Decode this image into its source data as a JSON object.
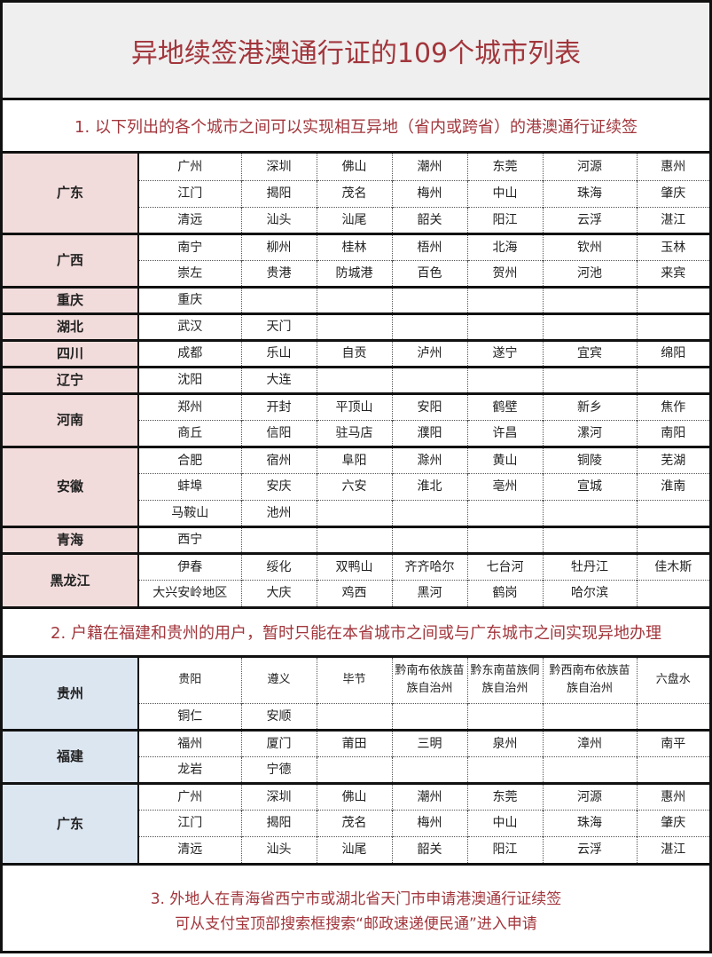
{
  "title": "异地续签港澳通行证的109个城市列表",
  "section1": {
    "heading": "1. 以下列出的各个城市之间可以实现相互异地（省内或跨省）的港澳通行证续签",
    "provinces": [
      {
        "name": "广东",
        "rows": [
          [
            "广州",
            "深圳",
            "佛山",
            "潮州",
            "东莞",
            "河源",
            "惠州"
          ],
          [
            "江门",
            "揭阳",
            "茂名",
            "梅州",
            "中山",
            "珠海",
            "肇庆"
          ],
          [
            "清远",
            "汕头",
            "汕尾",
            "韶关",
            "阳江",
            "云浮",
            "湛江"
          ]
        ]
      },
      {
        "name": "广西",
        "rows": [
          [
            "南宁",
            "柳州",
            "桂林",
            "梧州",
            "北海",
            "钦州",
            "玉林"
          ],
          [
            "崇左",
            "贵港",
            "防城港",
            "百色",
            "贺州",
            "河池",
            "来宾"
          ]
        ]
      },
      {
        "name": "重庆",
        "rows": [
          [
            "重庆",
            "",
            "",
            "",
            "",
            "",
            ""
          ]
        ]
      },
      {
        "name": "湖北",
        "rows": [
          [
            "武汉",
            "天门",
            "",
            "",
            "",
            "",
            ""
          ]
        ]
      },
      {
        "name": "四川",
        "rows": [
          [
            "成都",
            "乐山",
            "自贡",
            "泸州",
            "遂宁",
            "宜宾",
            "绵阳"
          ]
        ]
      },
      {
        "name": "辽宁",
        "rows": [
          [
            "沈阳",
            "大连",
            "",
            "",
            "",
            "",
            ""
          ]
        ]
      },
      {
        "name": "河南",
        "rows": [
          [
            "郑州",
            "开封",
            "平顶山",
            "安阳",
            "鹤壁",
            "新乡",
            "焦作"
          ],
          [
            "商丘",
            "信阳",
            "驻马店",
            "濮阳",
            "许昌",
            "漯河",
            "南阳"
          ]
        ]
      },
      {
        "name": "安徽",
        "rows": [
          [
            "合肥",
            "宿州",
            "阜阳",
            "滁州",
            "黄山",
            "铜陵",
            "芜湖"
          ],
          [
            "蚌埠",
            "安庆",
            "六安",
            "淮北",
            "亳州",
            "宣城",
            "淮南"
          ],
          [
            "马鞍山",
            "池州",
            "",
            "",
            "",
            "",
            ""
          ]
        ]
      },
      {
        "name": "青海",
        "rows": [
          [
            "西宁",
            "",
            "",
            "",
            "",
            "",
            ""
          ]
        ]
      },
      {
        "name": "黑龙江",
        "rows": [
          [
            "伊春",
            "绥化",
            "双鸭山",
            "齐齐哈尔",
            "七台河",
            "牡丹江",
            "佳木斯"
          ],
          [
            "大兴安岭地区",
            "大庆",
            "鸡西",
            "黑河",
            "鹤岗",
            "哈尔滨",
            ""
          ]
        ]
      }
    ]
  },
  "section2": {
    "heading": "2. 户籍在福建和贵州的用户，暂时只能在本省城市之间或与广东城市之间实现异地办理",
    "provinces": [
      {
        "name": "贵州",
        "rows": [
          [
            "贵阳",
            "遵义",
            "毕节",
            "黔南布依族苗族自治州",
            "黔东南苗族侗族自治州",
            "黔西南布依族苗族自治州",
            "六盘水"
          ],
          [
            "铜仁",
            "安顺",
            "",
            "",
            "",
            "",
            ""
          ]
        ]
      },
      {
        "name": "福建",
        "rows": [
          [
            "福州",
            "厦门",
            "莆田",
            "三明",
            "泉州",
            "漳州",
            "南平"
          ],
          [
            "龙岩",
            "宁德",
            "",
            "",
            "",
            "",
            ""
          ]
        ]
      },
      {
        "name": "广东",
        "rows": [
          [
            "广州",
            "深圳",
            "佛山",
            "潮州",
            "东莞",
            "河源",
            "惠州"
          ],
          [
            "江门",
            "揭阳",
            "茂名",
            "梅州",
            "中山",
            "珠海",
            "肇庆"
          ],
          [
            "清远",
            "汕头",
            "汕尾",
            "韶关",
            "阳江",
            "云浮",
            "湛江"
          ]
        ]
      }
    ]
  },
  "footer": {
    "line1": "3. 外地人在青海省西宁市或湖北省天门市申请港澳通行证续签",
    "line2": "可从支付宝顶部搜索框搜索“邮政速递便民通”进入申请"
  },
  "colors": {
    "accent": "#a2363c",
    "section1_province_bg": "#f2dcdb",
    "section2_province_bg": "#dce6f1"
  }
}
